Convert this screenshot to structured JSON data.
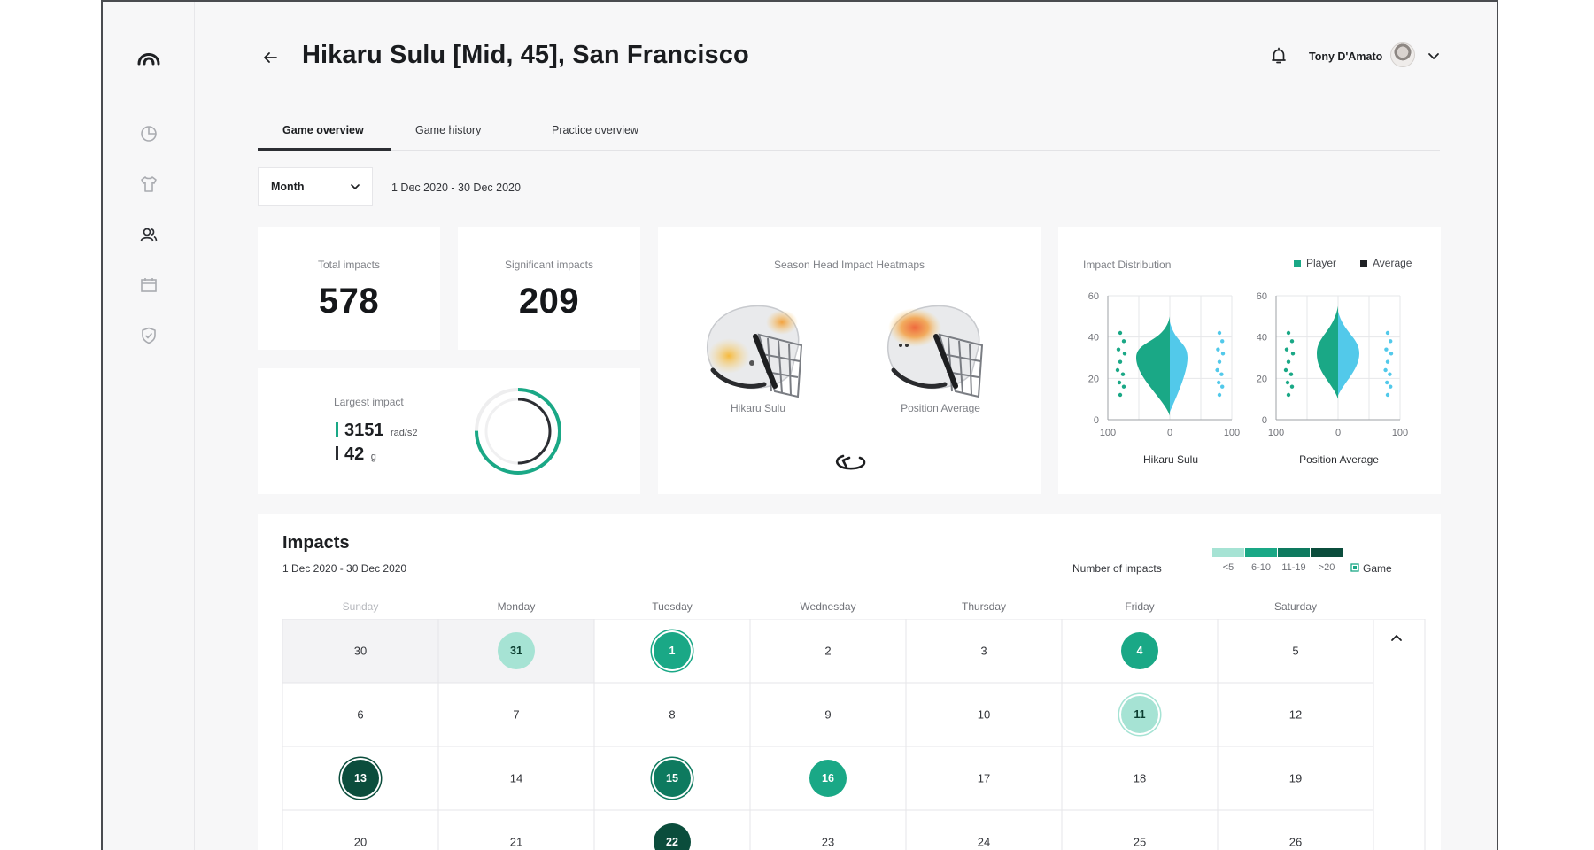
{
  "header": {
    "title": "Hikaru Sulu [Mid, 45], San Francisco",
    "user_name": "Tony D'Amato"
  },
  "sidebar": {
    "items": [
      "dashboard-icon",
      "jersey-icon",
      "users-icon",
      "calendar-icon",
      "shield-icon"
    ]
  },
  "tabs": [
    {
      "label": "Game overview",
      "active": true
    },
    {
      "label": "Game history",
      "active": false
    },
    {
      "label": "Practice overview",
      "active": false
    }
  ],
  "filter": {
    "period": "Month",
    "date_range": "1 Dec 2020 - 30 Dec 2020"
  },
  "stats": {
    "total_label": "Total impacts",
    "total_value": "578",
    "significant_label": "Significant impacts",
    "significant_value": "209",
    "largest_label": "Largest impact",
    "largest_rot_value": "3151",
    "largest_rot_unit": "rad/s2",
    "largest_lin_value": "42",
    "largest_lin_unit": "g",
    "largest_ring_fraction": 0.75
  },
  "heatmaps": {
    "title": "Season Head Impact Heatmaps",
    "left_label": "Hikaru Sulu",
    "right_label": "Position Average"
  },
  "distribution": {
    "title": "Impact Distribution",
    "legend_player": "Player",
    "legend_average": "Average",
    "player_color": "#1aa886",
    "average_color": "#52c9ea",
    "left_caption": "Hikaru Sulu",
    "right_caption": "Position Average"
  },
  "chart_data": {
    "type": "violin",
    "title": "Impact Distribution",
    "ylim": [
      0,
      60
    ],
    "y_ticks": [
      "0",
      "20",
      "40",
      "60"
    ],
    "x_ticks": [
      "100",
      "0",
      "100"
    ],
    "series": [
      {
        "name": "Player"
      },
      {
        "name": "Average"
      }
    ],
    "panels": [
      "Hikaru Sulu",
      "Position Average"
    ]
  },
  "impacts": {
    "title": "Impacts",
    "date_range": "1 Dec 2020 - 30 Dec 2020",
    "legend_title": "Number of impacts",
    "legend_bins": [
      "<5",
      "6-10",
      "11-19",
      ">20"
    ],
    "legend_colors": [
      "#a6e3d4",
      "#1aa886",
      "#0e7a5f",
      "#0b4d3c"
    ],
    "legend_game": "Game",
    "weekdays": [
      "Sunday",
      "Monday",
      "Tuesday",
      "Wednesday",
      "Thursday",
      "Friday",
      "Saturday"
    ],
    "weeks": [
      [
        "30",
        "31",
        "1",
        "2",
        "3",
        "4",
        "5"
      ],
      [
        "6",
        "7",
        "8",
        "9",
        "10",
        "11",
        "12"
      ],
      [
        "13",
        "14",
        "15",
        "16",
        "17",
        "18",
        "19"
      ],
      [
        "20",
        "21",
        "22",
        "23",
        "24",
        "25",
        "26"
      ]
    ]
  }
}
